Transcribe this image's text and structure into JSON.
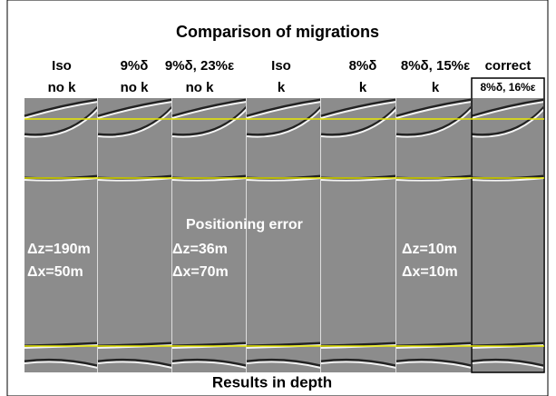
{
  "title": "Comparison of migrations",
  "columns": [
    {
      "line1": "Iso",
      "line2": "no k"
    },
    {
      "line1": "9%δ",
      "line2": "no k"
    },
    {
      "line1": "9%δ, 23%ε",
      "line2": "no k"
    },
    {
      "line1": "Iso",
      "line2": "k"
    },
    {
      "line1": "8%δ",
      "line2": "k"
    },
    {
      "line1": "8%δ, 15%ε",
      "line2": "k"
    },
    {
      "line1": "correct",
      "line2": "8%δ, 16%ε"
    }
  ],
  "annotations": [
    "Positioning error",
    "Δz=190m",
    "Δx=50m",
    "Δz=36m",
    "Δx=70m",
    "Δz=10m",
    "Δx=10m"
  ],
  "footer": "Results in depth"
}
